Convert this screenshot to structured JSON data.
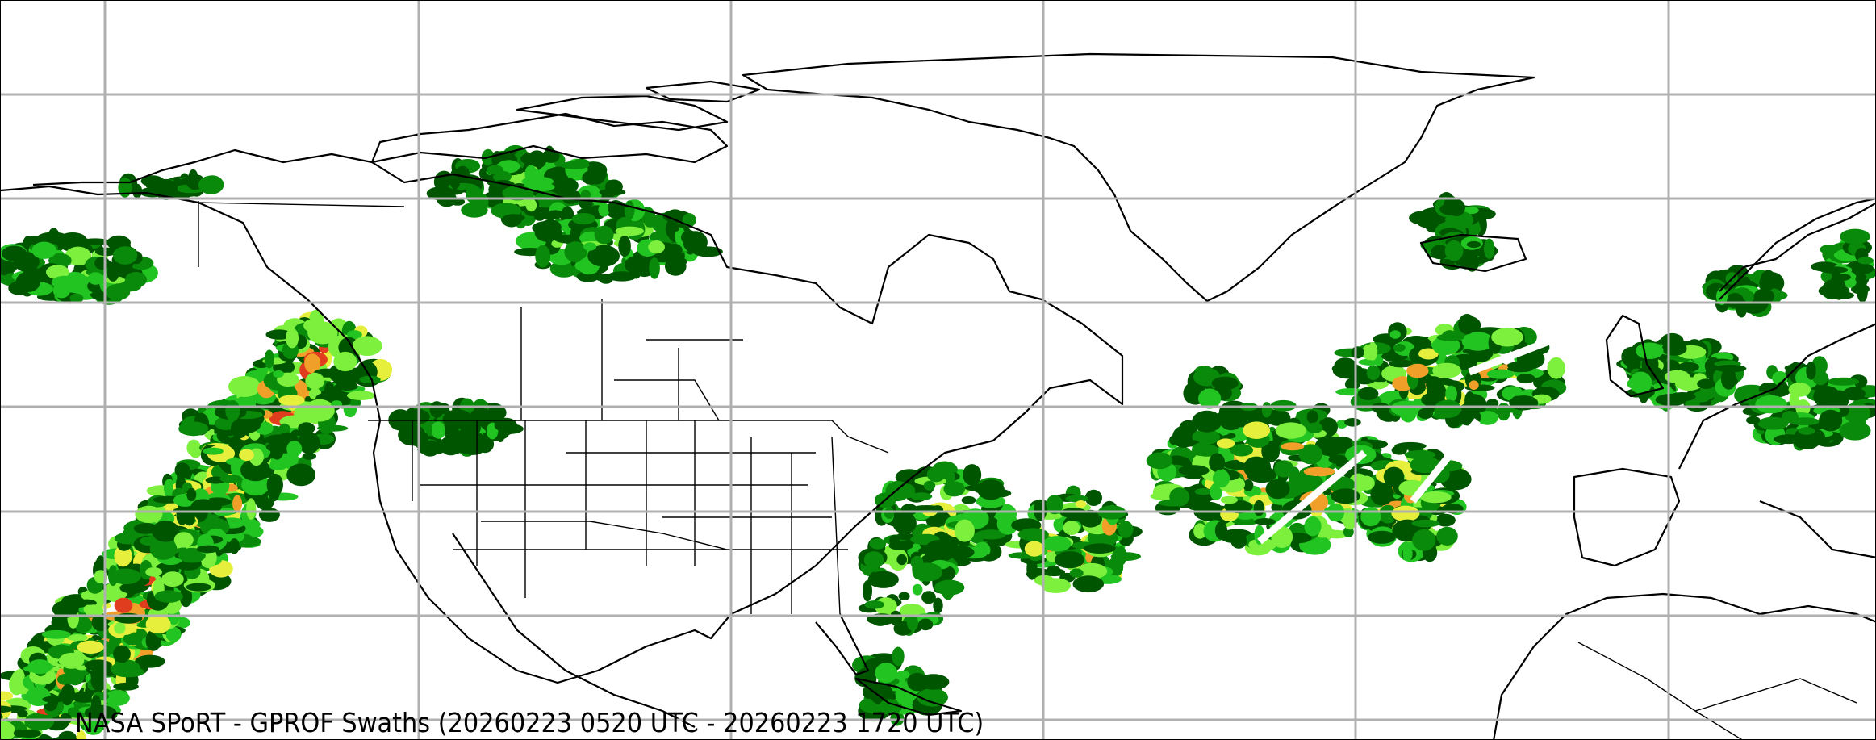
{
  "title": "NASA SPoRT - GPROF Swaths (20260223 0520 UTC - 20260223 1720 UTC)",
  "map": {
    "projection": "equirectangular",
    "gridlines": true,
    "colors": {
      "grid": "#b0b0b0",
      "coastline": "#000000",
      "background": "#ffffff",
      "precip_scale": [
        "#005500",
        "#0a8a0a",
        "#22c422",
        "#7cf03c",
        "#e6f03c",
        "#f0a028",
        "#e03c1e"
      ]
    }
  }
}
